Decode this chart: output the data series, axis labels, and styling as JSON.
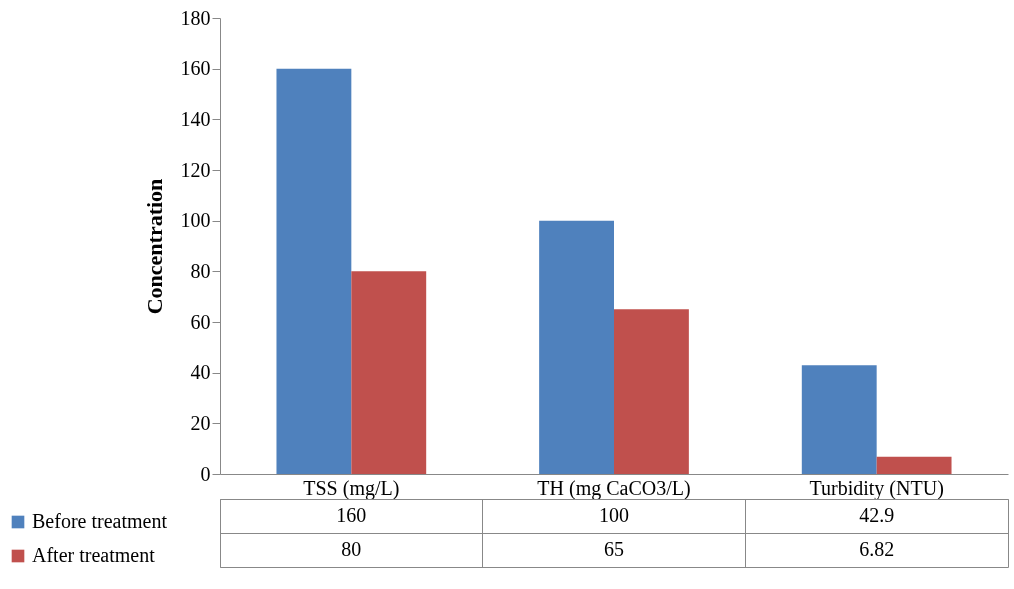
{
  "chart_data": {
    "type": "bar",
    "ylabel": "Concentration",
    "categories": [
      "TSS (mg/L)",
      "TH (mg CaCO3/L)",
      "Turbidity (NTU)"
    ],
    "series": [
      {
        "name": "Before treatment",
        "color": "#4f81bd",
        "values": [
          160,
          100,
          42.9
        ]
      },
      {
        "name": "After treatment",
        "color": "#c0504d",
        "values": [
          80,
          65,
          6.82
        ]
      }
    ],
    "ylim": [
      0,
      180
    ],
    "yticks": [
      0,
      20,
      40,
      60,
      80,
      100,
      120,
      140,
      160,
      180
    ],
    "grid": false,
    "legend": "bottom left",
    "data_labels": true
  }
}
